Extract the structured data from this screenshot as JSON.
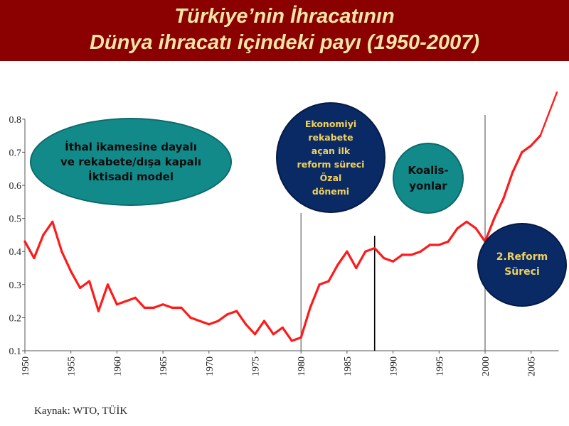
{
  "header": {
    "title_line1": "Türkiye’nin İhracatının",
    "title_line2": "Dünya ihracatı içindeki payı (1950-2007)"
  },
  "annotations": {
    "ithal_model": "İthal ikamesine dayalı\nve rekabete/dışa kapalı\nİktisadi model",
    "ozal": "Ekonomiyi\nrekabete\naçan ilk\nreform süreci\nÖzal\ndönemi",
    "koalisyonlar": "Koalis-\nyonlar",
    "reform2": "2.Reform\nSüreci"
  },
  "source": "Kaynak: WTO, TÜİK",
  "colors": {
    "header_bg": "#8b0000",
    "title_text": "#f3e6a8",
    "line": "#ff1a1a",
    "teal": "#138a8a",
    "navy": "#0a2a66",
    "navy_text": "#f2d25a"
  },
  "chart_data": {
    "type": "line",
    "x": [
      1950,
      1951,
      1952,
      1953,
      1954,
      1955,
      1956,
      1957,
      1958,
      1959,
      1960,
      1961,
      1962,
      1963,
      1964,
      1965,
      1966,
      1967,
      1968,
      1969,
      1970,
      1971,
      1972,
      1973,
      1974,
      1975,
      1976,
      1977,
      1978,
      1979,
      1980,
      1981,
      1982,
      1983,
      1984,
      1985,
      1986,
      1987,
      1988,
      1989,
      1990,
      1991,
      1992,
      1993,
      1994,
      1995,
      1996,
      1997,
      1998,
      1999,
      2000,
      2001,
      2002,
      2003,
      2004,
      2005,
      2006
    ],
    "series": [
      {
        "values": [
          0.43,
          0.38,
          0.45,
          0.49,
          0.4,
          0.34,
          0.29,
          0.31,
          0.22,
          0.3,
          0.24,
          0.25,
          0.26,
          0.23,
          0.23,
          0.24,
          0.23,
          0.23,
          0.2,
          0.19,
          0.18,
          0.19,
          0.21,
          0.22,
          0.18,
          0.15,
          0.19,
          0.15,
          0.17,
          0.13,
          0.14,
          0.23,
          0.3,
          0.31,
          0.36,
          0.4,
          0.35,
          0.4,
          0.41,
          0.38,
          0.37,
          0.39,
          0.39,
          0.4,
          0.42,
          0.42,
          0.43,
          0.47,
          0.49,
          0.47,
          0.43,
          0.5,
          0.56,
          0.64,
          0.7,
          0.72,
          0.75
        ]
      }
    ],
    "x_ticks": [
      "1950",
      "1955",
      "1960",
      "1965",
      "1970",
      "1975",
      "1980",
      "1985",
      "1990",
      "1995",
      "2000",
      "2005"
    ],
    "y_ticks": [
      "0.1",
      "0.2",
      "0.3",
      "0.4",
      "0.5",
      "0.6",
      "0.7",
      "0.8"
    ],
    "xlim": [
      1950,
      2008
    ],
    "ylim": [
      0.1,
      0.8
    ],
    "vertical_markers": [
      1980,
      1988,
      2000
    ],
    "grid": false
  }
}
